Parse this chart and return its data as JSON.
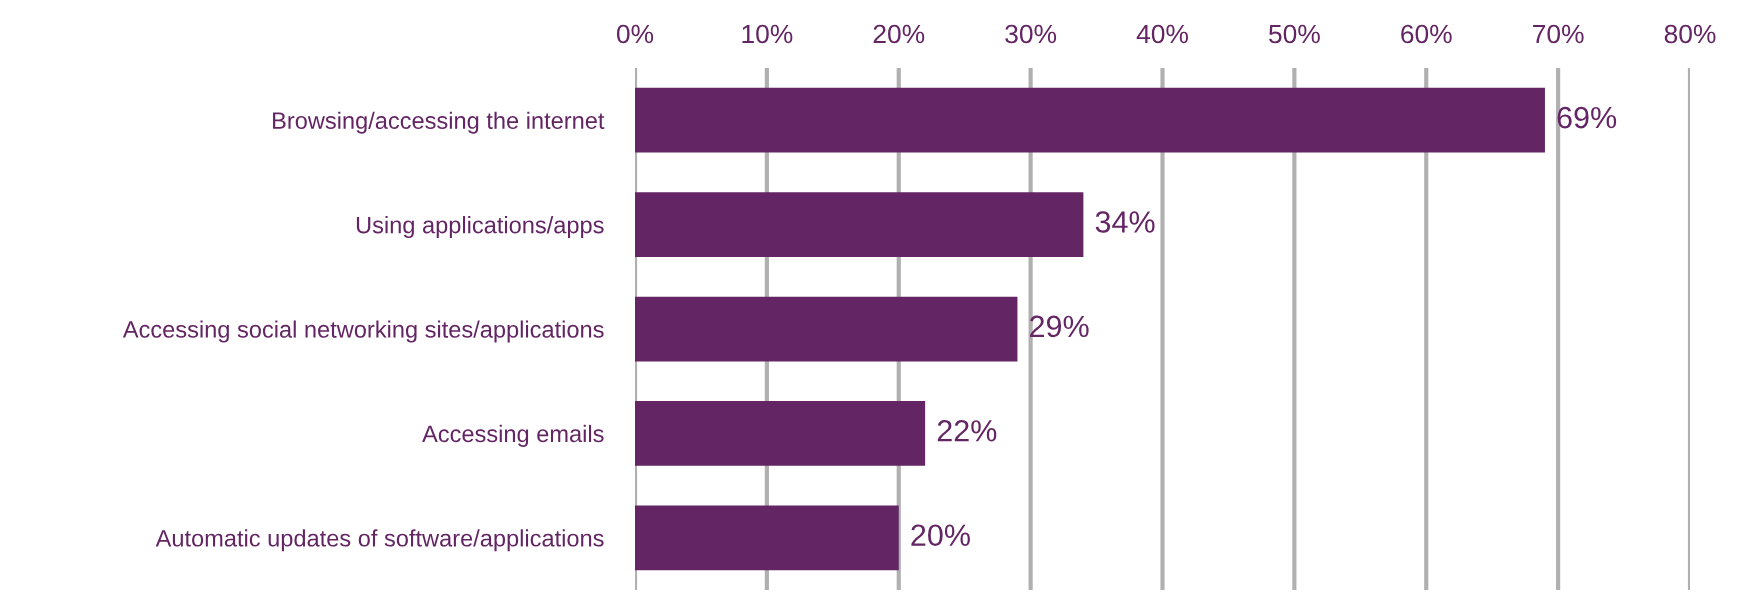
{
  "chart_data": {
    "type": "bar",
    "orientation": "horizontal",
    "categories": [
      "Browsing/accessing the internet",
      "Using applications/apps",
      "Accessing social networking sites/applications",
      "Accessing emails",
      "Automatic updates of software/applications"
    ],
    "values": [
      69,
      34,
      29,
      22,
      20
    ],
    "value_labels": [
      "69%",
      "34%",
      "29%",
      "22%",
      "20%"
    ],
    "color": "#632563",
    "xlim": [
      0,
      80
    ],
    "xticks": [
      {
        "value": 0,
        "label": "0%"
      },
      {
        "value": 10,
        "label": "10%"
      },
      {
        "value": 20,
        "label": "20%"
      },
      {
        "value": 30,
        "label": "30%"
      },
      {
        "value": 40,
        "label": "40%"
      },
      {
        "value": 50,
        "label": "50%"
      },
      {
        "value": 60,
        "label": "60%"
      },
      {
        "value": 70,
        "label": "70%"
      },
      {
        "value": 80,
        "label": "80%"
      }
    ],
    "grid": "x",
    "legend": false
  }
}
